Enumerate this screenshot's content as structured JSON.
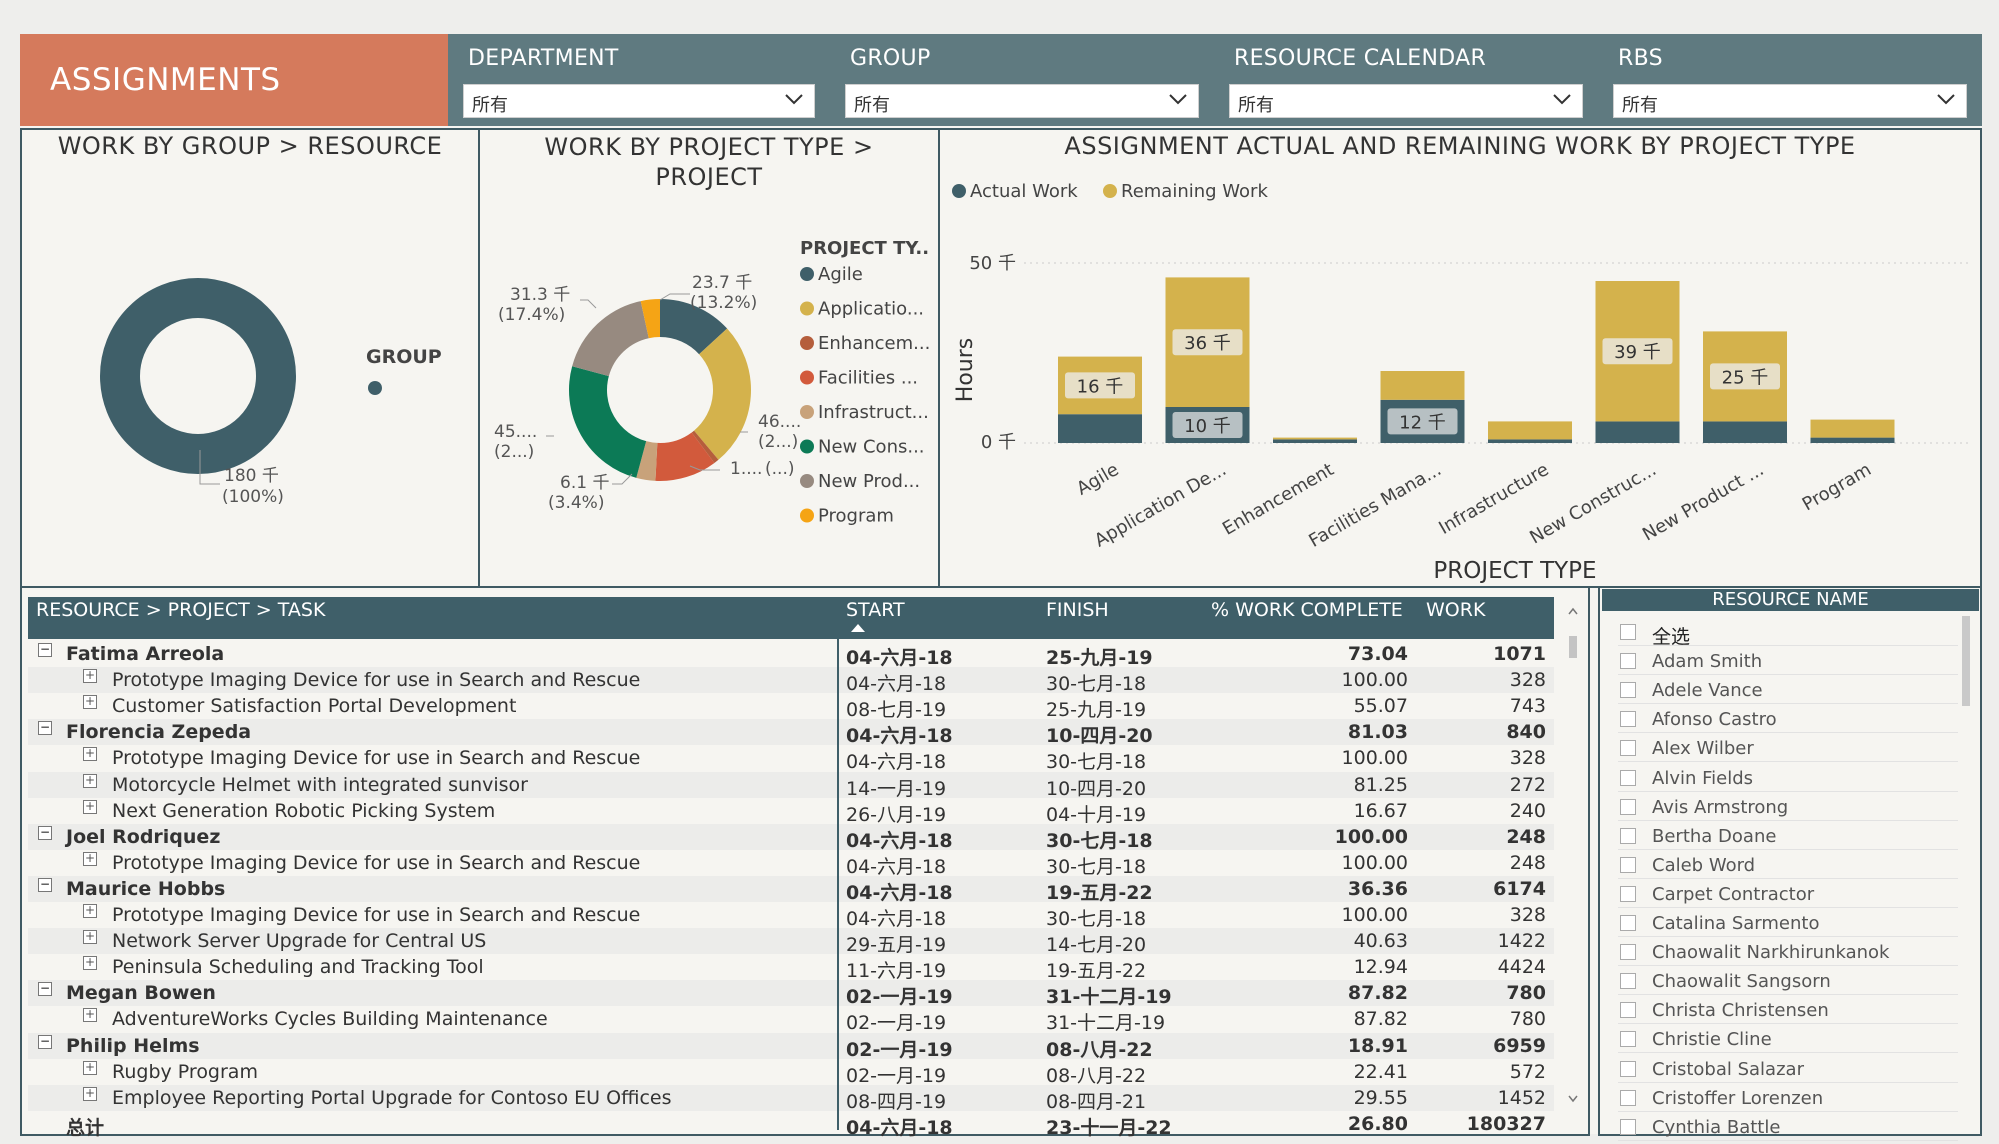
{
  "header": {
    "title": "ASSIGNMENTS",
    "filters": [
      {
        "label": "DEPARTMENT",
        "value": "所有"
      },
      {
        "label": "GROUP",
        "value": "所有"
      },
      {
        "label": "RESOURCE CALENDAR",
        "value": "所有"
      },
      {
        "label": "RBS",
        "value": "所有"
      }
    ]
  },
  "colors": {
    "header_bg": "#5f7a80",
    "title_bg": "#d57a5c",
    "panel_border": "#3f5a63",
    "table_header": "#3f5f69",
    "actual": "#3f5f69",
    "remaining": "#d4b24c"
  },
  "panel_group": {
    "title": "WORK BY GROUP > RESOURCE",
    "legend_title": "GROUP",
    "label_value": "180 千",
    "label_pct": "(100%)"
  },
  "panel_project_type": {
    "title_line1": "WORK BY PROJECT TYPE >",
    "title_line2": "PROJECT",
    "legend_title": "PROJECT TY..",
    "legend": [
      {
        "label": "Agile",
        "color": "#3f5f69"
      },
      {
        "label": "Applicatio...",
        "color": "#d4b24c"
      },
      {
        "label": "Enhancem...",
        "color": "#b55e3c"
      },
      {
        "label": "Facilities ...",
        "color": "#d25a3c"
      },
      {
        "label": "Infrastruct...",
        "color": "#c8a27a"
      },
      {
        "label": "New Cons...",
        "color": "#0c7a56"
      },
      {
        "label": "New Prod...",
        "color": "#978a80"
      },
      {
        "label": "Program",
        "color": "#f5a415"
      }
    ],
    "labels": [
      {
        "value": "23.7 千",
        "pct": "(13.2%)"
      },
      {
        "value": "31.3 千",
        "pct": "(17.4%)"
      },
      {
        "value": "45....",
        "pct": "(2...)"
      },
      {
        "value": "6.1 千",
        "pct": "(3.4%)"
      },
      {
        "value": "46....",
        "pct": "(2...)"
      },
      {
        "value": "1....",
        "pct": "(...)"
      }
    ]
  },
  "chart_data": {
    "type": "bar",
    "title": "ASSIGNMENT ACTUAL AND REMAINING WORK BY PROJECT TYPE",
    "xlabel": "PROJECT TYPE",
    "ylabel": "Hours",
    "y_ticks": [
      "0 千",
      "50 千"
    ],
    "ylim": [
      0,
      50000
    ],
    "stacked": true,
    "legend_position": "top-left",
    "categories": [
      "Agile",
      "Application De...",
      "Enhancement",
      "Facilities Mana...",
      "Infrastructure",
      "New Construc...",
      "New Product ...",
      "Program"
    ],
    "series": [
      {
        "name": "Actual Work",
        "color": "#3f5f69",
        "values": [
          8000,
          10000,
          1000,
          12000,
          1000,
          6000,
          6000,
          1500
        ]
      },
      {
        "name": "Remaining Work",
        "color": "#d4b24c",
        "values": [
          16000,
          36000,
          500,
          8000,
          5000,
          39000,
          25000,
          5000
        ]
      }
    ],
    "data_labels": [
      {
        "category": 0,
        "series": 1,
        "text": "16 千"
      },
      {
        "category": 1,
        "series": 1,
        "text": "36 千"
      },
      {
        "category": 1,
        "series": 0,
        "text": "10 千"
      },
      {
        "category": 3,
        "series": 0,
        "text": "12 千"
      },
      {
        "category": 5,
        "series": 1,
        "text": "39 千"
      },
      {
        "category": 6,
        "series": 1,
        "text": "25 千"
      }
    ]
  },
  "table": {
    "headers": {
      "name": "RESOURCE > PROJECT > TASK",
      "start": "START",
      "finish": "FINISH",
      "pct": "% WORK COMPLETE",
      "work": "WORK"
    },
    "rows": [
      {
        "level": 0,
        "toggle": "⊟",
        "name": "Fatima Arreola",
        "start": "04-六月-18",
        "finish": "25-九月-19",
        "pct": "73.04",
        "work": "1071"
      },
      {
        "level": 1,
        "toggle": "⊞",
        "name": "Prototype Imaging Device for use in Search and Rescue",
        "start": "04-六月-18",
        "finish": "30-七月-18",
        "pct": "100.00",
        "work": "328"
      },
      {
        "level": 1,
        "toggle": "⊞",
        "name": "Customer Satisfaction Portal Development",
        "start": "08-七月-19",
        "finish": "25-九月-19",
        "pct": "55.07",
        "work": "743"
      },
      {
        "level": 0,
        "toggle": "⊟",
        "name": "Florencia Zepeda",
        "start": "04-六月-18",
        "finish": "10-四月-20",
        "pct": "81.03",
        "work": "840"
      },
      {
        "level": 1,
        "toggle": "⊞",
        "name": "Prototype Imaging Device for use in Search and Rescue",
        "start": "04-六月-18",
        "finish": "30-七月-18",
        "pct": "100.00",
        "work": "328"
      },
      {
        "level": 1,
        "toggle": "⊞",
        "name": "Motorcycle Helmet with integrated sunvisor",
        "start": "14-一月-19",
        "finish": "10-四月-20",
        "pct": "81.25",
        "work": "272"
      },
      {
        "level": 1,
        "toggle": "⊞",
        "name": "Next Generation Robotic Picking System",
        "start": "26-八月-19",
        "finish": "04-十月-19",
        "pct": "16.67",
        "work": "240"
      },
      {
        "level": 0,
        "toggle": "⊟",
        "name": "Joel Rodriquez",
        "start": "04-六月-18",
        "finish": "30-七月-18",
        "pct": "100.00",
        "work": "248"
      },
      {
        "level": 1,
        "toggle": "⊞",
        "name": "Prototype Imaging Device for use in Search and Rescue",
        "start": "04-六月-18",
        "finish": "30-七月-18",
        "pct": "100.00",
        "work": "248"
      },
      {
        "level": 0,
        "toggle": "⊟",
        "name": "Maurice Hobbs",
        "start": "04-六月-18",
        "finish": "19-五月-22",
        "pct": "36.36",
        "work": "6174"
      },
      {
        "level": 1,
        "toggle": "⊞",
        "name": "Prototype Imaging Device for use in Search and Rescue",
        "start": "04-六月-18",
        "finish": "30-七月-18",
        "pct": "100.00",
        "work": "328"
      },
      {
        "level": 1,
        "toggle": "⊞",
        "name": "Network Server Upgrade for Central US",
        "start": "29-五月-19",
        "finish": "14-七月-20",
        "pct": "40.63",
        "work": "1422"
      },
      {
        "level": 1,
        "toggle": "⊞",
        "name": "Peninsula Scheduling and Tracking Tool",
        "start": "11-六月-19",
        "finish": "19-五月-22",
        "pct": "12.94",
        "work": "4424"
      },
      {
        "level": 0,
        "toggle": "⊟",
        "name": "Megan Bowen",
        "start": "02-一月-19",
        "finish": "31-十二月-19",
        "pct": "87.82",
        "work": "780"
      },
      {
        "level": 1,
        "toggle": "⊞",
        "name": "AdventureWorks Cycles Building Maintenance",
        "start": "02-一月-19",
        "finish": "31-十二月-19",
        "pct": "87.82",
        "work": "780"
      },
      {
        "level": 0,
        "toggle": "⊟",
        "name": "Philip Helms",
        "start": "02-一月-19",
        "finish": "08-八月-22",
        "pct": "18.91",
        "work": "6959"
      },
      {
        "level": 1,
        "toggle": "⊞",
        "name": "Rugby Program",
        "start": "02-一月-19",
        "finish": "08-八月-22",
        "pct": "22.41",
        "work": "572"
      },
      {
        "level": 1,
        "toggle": "⊞",
        "name": "Employee Reporting Portal Upgrade for Contoso EU Offices",
        "start": "08-四月-19",
        "finish": "08-四月-21",
        "pct": "29.55",
        "work": "1452"
      }
    ],
    "total": {
      "name": "总计",
      "start": "04-六月-18",
      "finish": "23-十一月-22",
      "pct": "26.80",
      "work": "180327"
    }
  },
  "resource_filter": {
    "title": "RESOURCE NAME",
    "items": [
      "全选",
      "Adam Smith",
      "Adele Vance",
      "Afonso Castro",
      "Alex Wilber",
      "Alvin Fields",
      "Avis Armstrong",
      "Bertha Doane",
      "Caleb Word",
      "Carpet Contractor",
      "Catalina Sarmento",
      "Chaowalit Narkhirunkanok",
      "Chaowalit Sangsorn",
      "Christa Christensen",
      "Christie Cline",
      "Cristobal Salazar",
      "Cristoffer Lorenzen",
      "Cynthia Battle"
    ]
  }
}
